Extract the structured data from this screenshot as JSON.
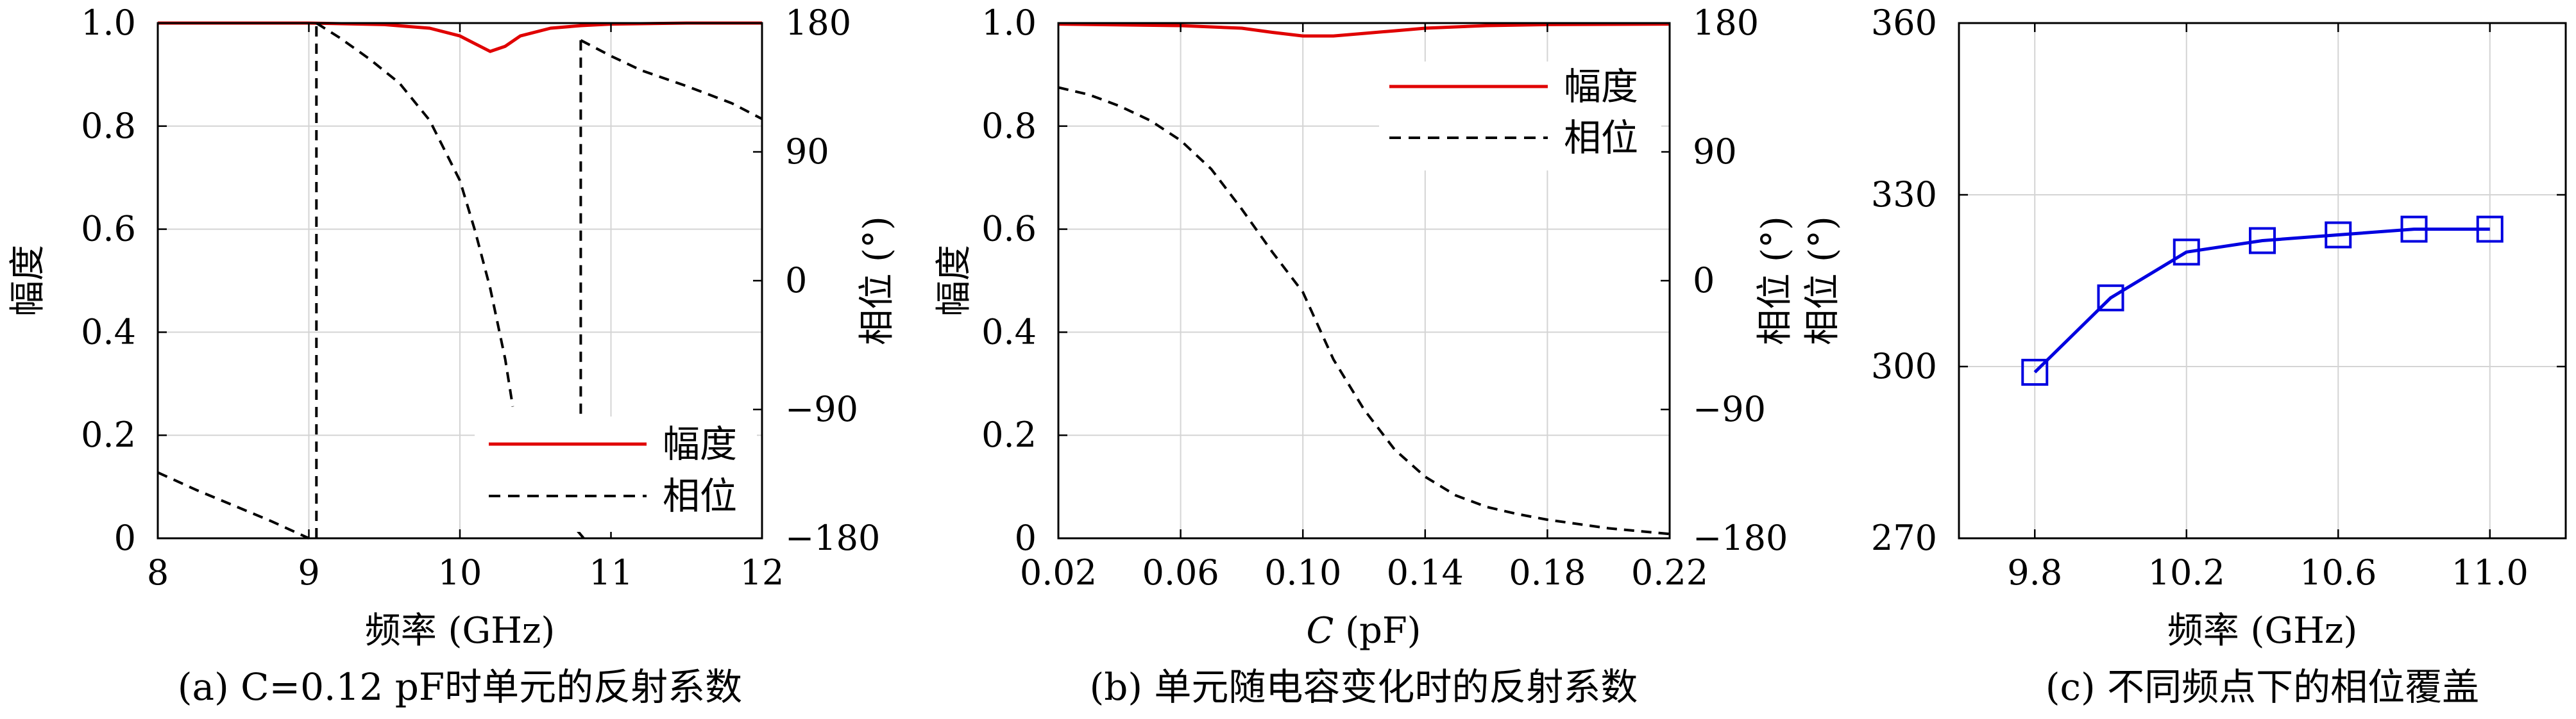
{
  "chart_data": [
    {
      "type": "line",
      "caption": "(a) C=0.12 pF时单元的反射系数",
      "xlabel": "频率 (GHz)",
      "ylabel": "幅度",
      "ylabel_right": "相位 (°)",
      "xlim": [
        8,
        12
      ],
      "ylim": [
        0,
        1
      ],
      "ylim_right": [
        -180,
        180
      ],
      "x_ticks": [
        "8",
        "9",
        "10",
        "11",
        "12"
      ],
      "y_ticks": [
        "0",
        "0.2",
        "0.4",
        "0.6",
        "0.8",
        "1.0"
      ],
      "y_right_ticks": [
        "−180",
        "−90",
        "0",
        "90",
        "180"
      ],
      "grid": true,
      "legend_position": "bottom-right",
      "series": [
        {
          "name": "幅度",
          "axis": "left",
          "color": "#e00000",
          "dash": "solid",
          "x": [
            8.0,
            9.0,
            9.5,
            9.8,
            10.0,
            10.1,
            10.2,
            10.3,
            10.4,
            10.6,
            10.8,
            11.0,
            11.5,
            12.0
          ],
          "y": [
            1.0,
            1.0,
            0.997,
            0.99,
            0.975,
            0.96,
            0.945,
            0.955,
            0.975,
            0.99,
            0.995,
            0.998,
            1.0,
            1.0
          ]
        },
        {
          "name": "相位",
          "axis": "right",
          "color": "#000000",
          "dash": "dashed",
          "segments": [
            {
              "x": [
                8.0,
                8.25,
                8.5,
                8.75,
                9.0
              ],
              "y": [
                -134,
                -146,
                -157,
                -168,
                -180
              ]
            },
            {
              "x": [
                9.05,
                9.05
              ],
              "y": [
                -180,
                180
              ]
            },
            {
              "x": [
                9.05,
                9.2,
                9.4,
                9.6,
                9.8,
                10.0,
                10.1,
                10.2,
                10.3,
                10.35
              ],
              "y": [
                180,
                170,
                155,
                138,
                112,
                70,
                35,
                -5,
                -55,
                -88
              ]
            },
            {
              "x": [
                10.8,
                10.8
              ],
              "y": [
                -93,
                168
              ]
            },
            {
              "x": [
                10.78,
                10.82
              ],
              "y": [
                -175,
                -180
              ]
            },
            {
              "x": [
                10.8,
                11.0,
                11.2,
                11.5,
                11.8,
                12.0
              ],
              "y": [
                168,
                157,
                147,
                136,
                124,
                113
              ]
            }
          ]
        }
      ]
    },
    {
      "type": "line",
      "caption": "(b) 单元随电容变化时的反射系数",
      "xlabel_italic": "C",
      "xlabel": "(pF)",
      "ylabel": "幅度",
      "ylabel_right": "相位 (°)",
      "xlim": [
        0.02,
        0.22
      ],
      "ylim": [
        0,
        1
      ],
      "ylim_right": [
        -180,
        180
      ],
      "x_ticks": [
        "0.02",
        "0.06",
        "0.10",
        "0.14",
        "0.18",
        "0.22"
      ],
      "y_ticks": [
        "0",
        "0.2",
        "0.4",
        "0.6",
        "0.8",
        "1.0"
      ],
      "y_right_ticks": [
        "−180",
        "−90",
        "0",
        "90",
        "180"
      ],
      "grid": true,
      "legend_position": "top-right",
      "series": [
        {
          "name": "幅度",
          "axis": "left",
          "color": "#e00000",
          "dash": "solid",
          "x": [
            0.02,
            0.06,
            0.08,
            0.09,
            0.1,
            0.11,
            0.12,
            0.13,
            0.14,
            0.16,
            0.18,
            0.22
          ],
          "y": [
            0.998,
            0.995,
            0.99,
            0.982,
            0.975,
            0.975,
            0.98,
            0.985,
            0.99,
            0.995,
            0.997,
            0.998
          ]
        },
        {
          "name": "相位",
          "axis": "right",
          "color": "#000000",
          "dash": "dashed",
          "x": [
            0.02,
            0.03,
            0.04,
            0.05,
            0.06,
            0.07,
            0.08,
            0.09,
            0.1,
            0.11,
            0.12,
            0.13,
            0.14,
            0.15,
            0.16,
            0.17,
            0.18,
            0.19,
            0.2,
            0.21,
            0.22
          ],
          "y": [
            135,
            130,
            122,
            112,
            98,
            78,
            50,
            20,
            -8,
            -55,
            -90,
            -118,
            -137,
            -150,
            -158,
            -163,
            -167,
            -170,
            -173,
            -175,
            -177
          ]
        }
      ]
    },
    {
      "type": "line",
      "caption": "(c) 不同频点下的相位覆盖",
      "xlabel": "频率 (GHz)",
      "ylabel": "相位 (°)",
      "xlim": [
        9.6,
        11.2
      ],
      "ylim": [
        270,
        360
      ],
      "x_ticks": [
        "9.8",
        "10.2",
        "10.6",
        "11.0"
      ],
      "y_ticks": [
        "270",
        "300",
        "330",
        "360"
      ],
      "grid": true,
      "series": [
        {
          "color": "#0000e0",
          "marker": "square",
          "x": [
            9.8,
            10.0,
            10.2,
            10.4,
            10.6,
            10.8,
            11.0
          ],
          "y": [
            299,
            312,
            320,
            322,
            323,
            324,
            324
          ]
        }
      ]
    }
  ]
}
